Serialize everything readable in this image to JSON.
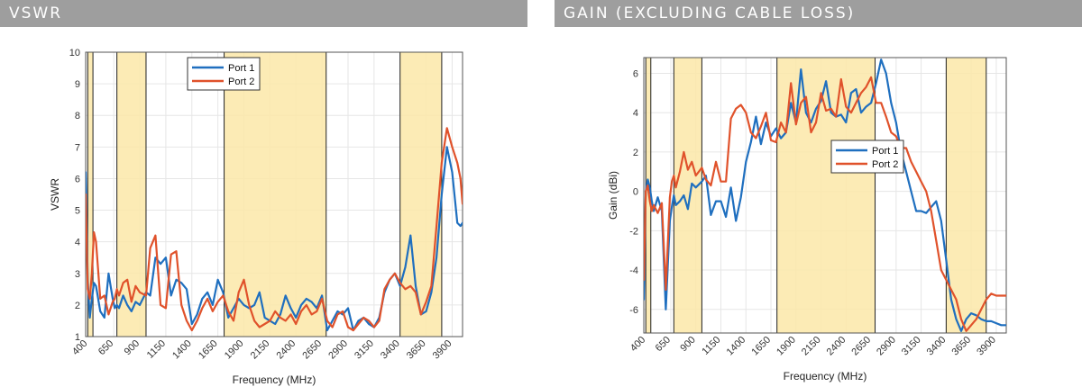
{
  "headers": {
    "left": "VSWR",
    "right": "GAIN (EXCLUDING CABLE LOSS)"
  },
  "chart_data": [
    {
      "type": "line",
      "title": "VSWR",
      "xlabel": "Frequency (MHz)",
      "ylabel": "VSWR",
      "xlim": [
        380,
        4000
      ],
      "ylim": [
        1,
        10
      ],
      "xticks": [
        400,
        650,
        900,
        1150,
        1400,
        1650,
        1900,
        2150,
        2400,
        2650,
        2900,
        3150,
        3400,
        3650,
        3900
      ],
      "yticks": [
        1,
        2,
        3,
        4,
        5,
        6,
        7,
        8,
        9,
        10
      ],
      "bands": [
        [
          400,
          450
        ],
        [
          680,
          960
        ],
        [
          1710,
          2690
        ],
        [
          3400,
          3800
        ]
      ],
      "legend": "top-center",
      "colors": [
        "#1f6fbf",
        "#e0522b"
      ],
      "series": [
        {
          "name": "Port 1",
          "x": [
            380,
            400,
            420,
            440,
            460,
            480,
            520,
            560,
            600,
            640,
            660,
            680,
            700,
            740,
            780,
            820,
            860,
            900,
            960,
            1000,
            1050,
            1100,
            1150,
            1200,
            1250,
            1300,
            1350,
            1400,
            1450,
            1500,
            1550,
            1600,
            1650,
            1700,
            1750,
            1800,
            1850,
            1900,
            1950,
            2000,
            2050,
            2100,
            2150,
            2200,
            2250,
            2300,
            2350,
            2400,
            2450,
            2500,
            2550,
            2600,
            2650,
            2700,
            2750,
            2800,
            2850,
            2900,
            2950,
            3000,
            3050,
            3100,
            3150,
            3200,
            3250,
            3300,
            3350,
            3400,
            3450,
            3500,
            3550,
            3600,
            3650,
            3700,
            3750,
            3800,
            3850,
            3900,
            3950,
            3980,
            4000
          ],
          "y": [
            6.2,
            2.8,
            1.6,
            2.2,
            2.7,
            2.6,
            1.8,
            1.6,
            3.0,
            2.2,
            1.9,
            2.0,
            1.9,
            2.3,
            2.0,
            1.8,
            2.1,
            2.0,
            2.4,
            2.3,
            3.5,
            3.3,
            3.5,
            2.3,
            2.8,
            2.7,
            2.5,
            1.4,
            1.7,
            2.2,
            2.4,
            2.0,
            2.8,
            2.4,
            1.6,
            1.9,
            2.2,
            2.0,
            1.9,
            2.0,
            2.4,
            1.6,
            1.5,
            1.4,
            1.7,
            2.3,
            1.9,
            1.6,
            2.0,
            2.2,
            2.1,
            1.9,
            2.3,
            1.2,
            1.5,
            1.8,
            1.7,
            1.9,
            1.2,
            1.5,
            1.6,
            1.4,
            1.3,
            1.6,
            2.4,
            2.8,
            3.0,
            2.6,
            3.2,
            4.2,
            2.6,
            1.7,
            1.8,
            2.4,
            3.5,
            5.5,
            7.0,
            6.2,
            4.6,
            4.5,
            4.6
          ]
        },
        {
          "name": "Port 2",
          "x": [
            380,
            400,
            420,
            440,
            460,
            480,
            520,
            560,
            600,
            640,
            660,
            680,
            700,
            740,
            780,
            820,
            860,
            900,
            960,
            1000,
            1050,
            1100,
            1150,
            1200,
            1250,
            1300,
            1350,
            1400,
            1450,
            1500,
            1550,
            1600,
            1650,
            1700,
            1750,
            1800,
            1850,
            1900,
            1950,
            2000,
            2050,
            2100,
            2150,
            2200,
            2250,
            2300,
            2350,
            2400,
            2450,
            2500,
            2550,
            2600,
            2650,
            2700,
            2750,
            2800,
            2850,
            2900,
            2950,
            3000,
            3050,
            3100,
            3150,
            3200,
            3250,
            3300,
            3350,
            3400,
            3450,
            3500,
            3550,
            3600,
            3650,
            3700,
            3750,
            3800,
            3850,
            3900,
            3950,
            3980,
            4000
          ],
          "y": [
            5.5,
            2.5,
            2.2,
            3.0,
            4.3,
            4.0,
            2.2,
            2.3,
            1.7,
            2.1,
            2.2,
            2.5,
            2.3,
            2.7,
            2.8,
            2.1,
            2.6,
            2.4,
            2.3,
            3.8,
            4.2,
            2.0,
            1.9,
            3.6,
            3.7,
            2.0,
            1.5,
            1.2,
            1.5,
            1.9,
            2.2,
            1.8,
            2.1,
            2.3,
            1.8,
            1.5,
            2.4,
            2.8,
            2.0,
            1.5,
            1.3,
            1.4,
            1.5,
            1.8,
            1.6,
            1.5,
            1.7,
            1.4,
            1.8,
            2.0,
            1.7,
            1.8,
            2.2,
            1.5,
            1.3,
            1.7,
            1.8,
            1.3,
            1.2,
            1.4,
            1.6,
            1.5,
            1.3,
            1.5,
            2.5,
            2.8,
            3.0,
            2.7,
            2.5,
            2.6,
            2.4,
            1.7,
            2.1,
            2.6,
            4.5,
            6.5,
            7.6,
            7.0,
            6.5,
            6.0,
            5.2
          ]
        }
      ]
    },
    {
      "type": "line",
      "title": "GAIN (EXCLUDING CABLE LOSS)",
      "xlabel": "Frequency (MHz)",
      "ylabel": "Gain (dBi)",
      "xlim": [
        380,
        4000
      ],
      "ylim": [
        -7.2,
        6.8
      ],
      "xticks": [
        400,
        650,
        900,
        1150,
        1400,
        1650,
        1900,
        2150,
        2400,
        2650,
        2900,
        3150,
        3400,
        3650,
        3900
      ],
      "yticks": [
        -6,
        -4,
        -2,
        0,
        2,
        4,
        6
      ],
      "bands": [
        [
          400,
          450
        ],
        [
          680,
          960
        ],
        [
          1710,
          2690
        ],
        [
          3400,
          3800
        ]
      ],
      "legend": "center",
      "colors": [
        "#1f6fbf",
        "#e0522b"
      ],
      "series": [
        {
          "name": "Port 1",
          "x": [
            380,
            400,
            420,
            440,
            460,
            480,
            520,
            560,
            600,
            640,
            660,
            680,
            700,
            740,
            780,
            820,
            860,
            900,
            960,
            1000,
            1050,
            1100,
            1150,
            1200,
            1250,
            1300,
            1350,
            1400,
            1450,
            1500,
            1550,
            1600,
            1650,
            1700,
            1750,
            1800,
            1850,
            1900,
            1950,
            2000,
            2050,
            2100,
            2150,
            2200,
            2250,
            2300,
            2350,
            2400,
            2450,
            2500,
            2550,
            2600,
            2650,
            2700,
            2750,
            2800,
            2850,
            2900,
            2950,
            3000,
            3050,
            3100,
            3150,
            3200,
            3250,
            3300,
            3350,
            3400,
            3450,
            3500,
            3550,
            3600,
            3650,
            3700,
            3750,
            3800,
            3850,
            3900,
            3950,
            3980,
            4000
          ],
          "y": [
            -5.5,
            0.0,
            0.6,
            0.2,
            -0.5,
            -1.0,
            -0.3,
            -1.0,
            -6.0,
            -1.5,
            -0.8,
            -0.2,
            -0.7,
            -0.5,
            -0.2,
            -0.9,
            0.4,
            0.2,
            0.5,
            0.8,
            -1.2,
            -0.5,
            -0.5,
            -1.3,
            0.2,
            -1.5,
            -0.3,
            1.5,
            2.5,
            3.8,
            2.4,
            3.5,
            2.8,
            3.2,
            2.7,
            3.0,
            4.5,
            3.5,
            6.2,
            4.0,
            3.5,
            4.2,
            4.6,
            5.6,
            4.0,
            3.8,
            3.9,
            3.5,
            5.0,
            5.2,
            4.0,
            4.3,
            4.5,
            5.5,
            6.7,
            6.0,
            4.5,
            3.5,
            2.0,
            1.0,
            0.0,
            -1.0,
            -1.0,
            -1.1,
            -0.8,
            -0.5,
            -1.5,
            -3.5,
            -5.5,
            -6.5,
            -7.1,
            -6.5,
            -6.2,
            -6.3,
            -6.5,
            -6.6,
            -6.6,
            -6.7,
            -6.8,
            -6.8,
            -6.8
          ]
        },
        {
          "name": "Port 2",
          "x": [
            380,
            400,
            420,
            440,
            460,
            480,
            520,
            560,
            600,
            640,
            660,
            680,
            700,
            740,
            780,
            820,
            860,
            900,
            960,
            1000,
            1050,
            1100,
            1150,
            1200,
            1250,
            1300,
            1350,
            1400,
            1450,
            1500,
            1550,
            1600,
            1650,
            1700,
            1750,
            1800,
            1850,
            1900,
            1950,
            2000,
            2050,
            2100,
            2150,
            2200,
            2250,
            2300,
            2350,
            2400,
            2450,
            2500,
            2550,
            2600,
            2650,
            2700,
            2750,
            2800,
            2850,
            2900,
            2950,
            3000,
            3050,
            3100,
            3150,
            3200,
            3250,
            3300,
            3350,
            3400,
            3450,
            3500,
            3550,
            3600,
            3650,
            3700,
            3750,
            3800,
            3850,
            3900,
            3950,
            3980,
            4000
          ],
          "y": [
            -4.5,
            0.0,
            0.3,
            -0.5,
            -1.0,
            -0.7,
            -1.1,
            -0.6,
            -5.0,
            -0.3,
            0.5,
            0.8,
            0.2,
            1.0,
            2.0,
            1.1,
            1.5,
            0.8,
            1.2,
            0.6,
            0.3,
            1.5,
            0.5,
            0.5,
            3.7,
            4.2,
            4.4,
            4.0,
            3.0,
            2.7,
            3.3,
            4.0,
            2.6,
            2.5,
            3.5,
            3.0,
            5.5,
            3.4,
            4.5,
            4.8,
            3.0,
            3.5,
            5.0,
            4.1,
            4.2,
            3.8,
            5.7,
            4.3,
            4.0,
            4.5,
            5.0,
            5.3,
            5.8,
            4.5,
            4.5,
            3.8,
            3.0,
            2.8,
            2.2,
            2.2,
            1.5,
            1.0,
            0.5,
            0.0,
            -1.0,
            -2.5,
            -4.0,
            -4.5,
            -5.0,
            -5.5,
            -6.5,
            -7.1,
            -6.8,
            -6.5,
            -6.0,
            -5.5,
            -5.2,
            -5.3,
            -5.3,
            -5.3,
            -5.3
          ]
        }
      ]
    }
  ]
}
